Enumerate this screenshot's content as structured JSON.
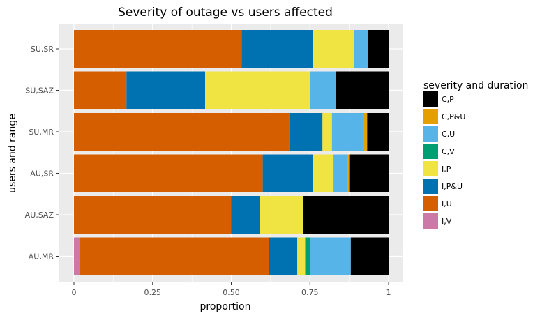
{
  "chart_data": {
    "type": "bar",
    "orientation": "horizontal",
    "stacked": true,
    "title": "Severity of outage vs users affected",
    "xlabel": "proportion",
    "ylabel": "users and range",
    "xlim": [
      0,
      1
    ],
    "x_ticks": [
      0,
      0.25,
      0.5,
      0.75,
      1
    ],
    "x_tick_labels": [
      "0",
      "0.25",
      "0.50",
      "0.75",
      "1"
    ],
    "categories": [
      "AU,MR",
      "AU,SAZ",
      "AU,SR",
      "SU,MR",
      "SU,SAZ",
      "SU,SR"
    ],
    "legend": {
      "title": "severity and duration",
      "position": "right",
      "order": [
        "C,P",
        "C,P&U",
        "C,U",
        "C,V",
        "I,P",
        "I,P&U",
        "I,U",
        "I,V"
      ]
    },
    "grid": true,
    "series": [
      {
        "name": "I,V",
        "color": "#CC79A7",
        "values": [
          0.02,
          0,
          0,
          0,
          0,
          0
        ]
      },
      {
        "name": "I,U",
        "color": "#D55E00",
        "values": [
          0.6,
          0.5,
          0.6,
          0.685,
          0.167,
          0.533
        ]
      },
      {
        "name": "I,P&U",
        "color": "#0072B2",
        "values": [
          0.09,
          0.09,
          0.16,
          0.105,
          0.25,
          0.227
        ]
      },
      {
        "name": "I,P",
        "color": "#F0E442",
        "values": [
          0.025,
          0.138,
          0.065,
          0.03,
          0.333,
          0.13
        ]
      },
      {
        "name": "C,V",
        "color": "#009E73",
        "values": [
          0.015,
          0,
          0,
          0,
          0,
          0
        ]
      },
      {
        "name": "C,U",
        "color": "#56B4E9",
        "values": [
          0.13,
          0,
          0.045,
          0.1,
          0.083,
          0.045
        ]
      },
      {
        "name": "C,P&U",
        "color": "#E69F00",
        "values": [
          0,
          0,
          0.005,
          0.012,
          0,
          0
        ]
      },
      {
        "name": "C,P",
        "color": "#000000",
        "values": [
          0.12,
          0.272,
          0.125,
          0.068,
          0.167,
          0.065
        ]
      }
    ]
  }
}
